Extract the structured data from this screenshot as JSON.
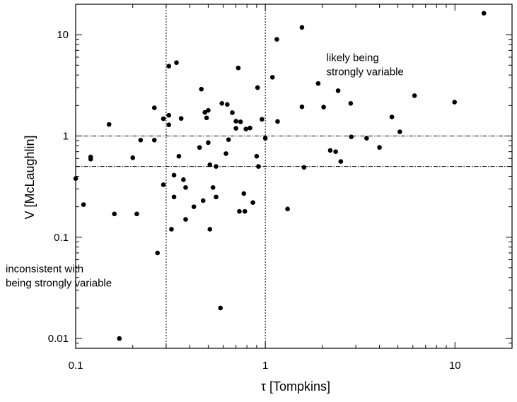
{
  "chart_data": {
    "type": "scatter",
    "xlabel": "τ [Tompkins]",
    "ylabel": "V [McLaughlin]",
    "xscale": "log",
    "yscale": "log",
    "xlim": [
      0.1,
      20
    ],
    "ylim": [
      0.008,
      20
    ],
    "x_ticks": [
      {
        "value": 0.1,
        "label": "0.1"
      },
      {
        "value": 1,
        "label": "1"
      },
      {
        "value": 10,
        "label": "10"
      }
    ],
    "y_ticks": [
      {
        "value": 0.01,
        "label": "0.01"
      },
      {
        "value": 0.1,
        "label": "0.1"
      },
      {
        "value": 1,
        "label": "1"
      },
      {
        "value": 10,
        "label": "10"
      }
    ],
    "reference_lines": {
      "horizontal": [
        1,
        0.5
      ],
      "vertical": [
        0.3,
        1
      ]
    },
    "annotations": [
      {
        "lines": [
          "likely being",
          "strongly variable"
        ],
        "x": 2.1,
        "y": 5.5
      },
      {
        "lines": [
          "inconsistent with",
          "being strongly variable"
        ],
        "x": 0.1,
        "y": 0.045
      }
    ],
    "points": [
      [
        0.1,
        0.38
      ],
      [
        0.11,
        0.21
      ],
      [
        0.12,
        0.62
      ],
      [
        0.12,
        0.59
      ],
      [
        0.15,
        1.3
      ],
      [
        0.16,
        0.17
      ],
      [
        0.17,
        0.01
      ],
      [
        0.2,
        0.61
      ],
      [
        0.21,
        0.17
      ],
      [
        0.22,
        0.91
      ],
      [
        0.26,
        1.9
      ],
      [
        0.26,
        0.91
      ],
      [
        0.27,
        0.07
      ],
      [
        0.29,
        1.48
      ],
      [
        0.29,
        0.33
      ],
      [
        0.31,
        4.9
      ],
      [
        0.31,
        1.6
      ],
      [
        0.31,
        1.29
      ],
      [
        0.32,
        0.12
      ],
      [
        0.33,
        0.41
      ],
      [
        0.33,
        0.25
      ],
      [
        0.34,
        5.3
      ],
      [
        0.35,
        0.63
      ],
      [
        0.36,
        1.49
      ],
      [
        0.37,
        0.37
      ],
      [
        0.38,
        0.31
      ],
      [
        0.38,
        0.15
      ],
      [
        0.42,
        0.2
      ],
      [
        0.45,
        0.77
      ],
      [
        0.46,
        2.9
      ],
      [
        0.47,
        0.23
      ],
      [
        0.48,
        1.71
      ],
      [
        0.49,
        1.51
      ],
      [
        0.5,
        1.79
      ],
      [
        0.5,
        0.86
      ],
      [
        0.51,
        0.52
      ],
      [
        0.51,
        0.12
      ],
      [
        0.53,
        0.31
      ],
      [
        0.55,
        0.5
      ],
      [
        0.55,
        0.25
      ],
      [
        0.58,
        0.02
      ],
      [
        0.59,
        2.1
      ],
      [
        0.62,
        0.67
      ],
      [
        0.63,
        2.05
      ],
      [
        0.64,
        0.92
      ],
      [
        0.67,
        1.7
      ],
      [
        0.7,
        1.19
      ],
      [
        0.7,
        1.4
      ],
      [
        0.72,
        4.7
      ],
      [
        0.73,
        0.18
      ],
      [
        0.74,
        1.38
      ],
      [
        0.77,
        0.27
      ],
      [
        0.78,
        0.18
      ],
      [
        0.79,
        1.17
      ],
      [
        0.83,
        1.2
      ],
      [
        0.86,
        0.22
      ],
      [
        0.9,
        0.63
      ],
      [
        0.91,
        3.0
      ],
      [
        0.92,
        0.5
      ],
      [
        0.96,
        1.46
      ],
      [
        1.0,
        0.95
      ],
      [
        1.09,
        3.8
      ],
      [
        1.15,
        9.0
      ],
      [
        1.16,
        1.39
      ],
      [
        1.31,
        0.19
      ],
      [
        1.56,
        11.8
      ],
      [
        1.56,
        1.94
      ],
      [
        1.6,
        0.49
      ],
      [
        1.9,
        3.3
      ],
      [
        2.03,
        1.93
      ],
      [
        2.2,
        0.72
      ],
      [
        2.35,
        0.7
      ],
      [
        2.42,
        2.8
      ],
      [
        2.5,
        0.56
      ],
      [
        2.82,
        2.1
      ],
      [
        2.84,
        0.98
      ],
      [
        3.42,
        0.95
      ],
      [
        4.0,
        0.77
      ],
      [
        4.65,
        1.54
      ],
      [
        5.12,
        1.1
      ],
      [
        6.12,
        2.5
      ],
      [
        9.95,
        2.16
      ],
      [
        14.2,
        16.3
      ]
    ]
  }
}
